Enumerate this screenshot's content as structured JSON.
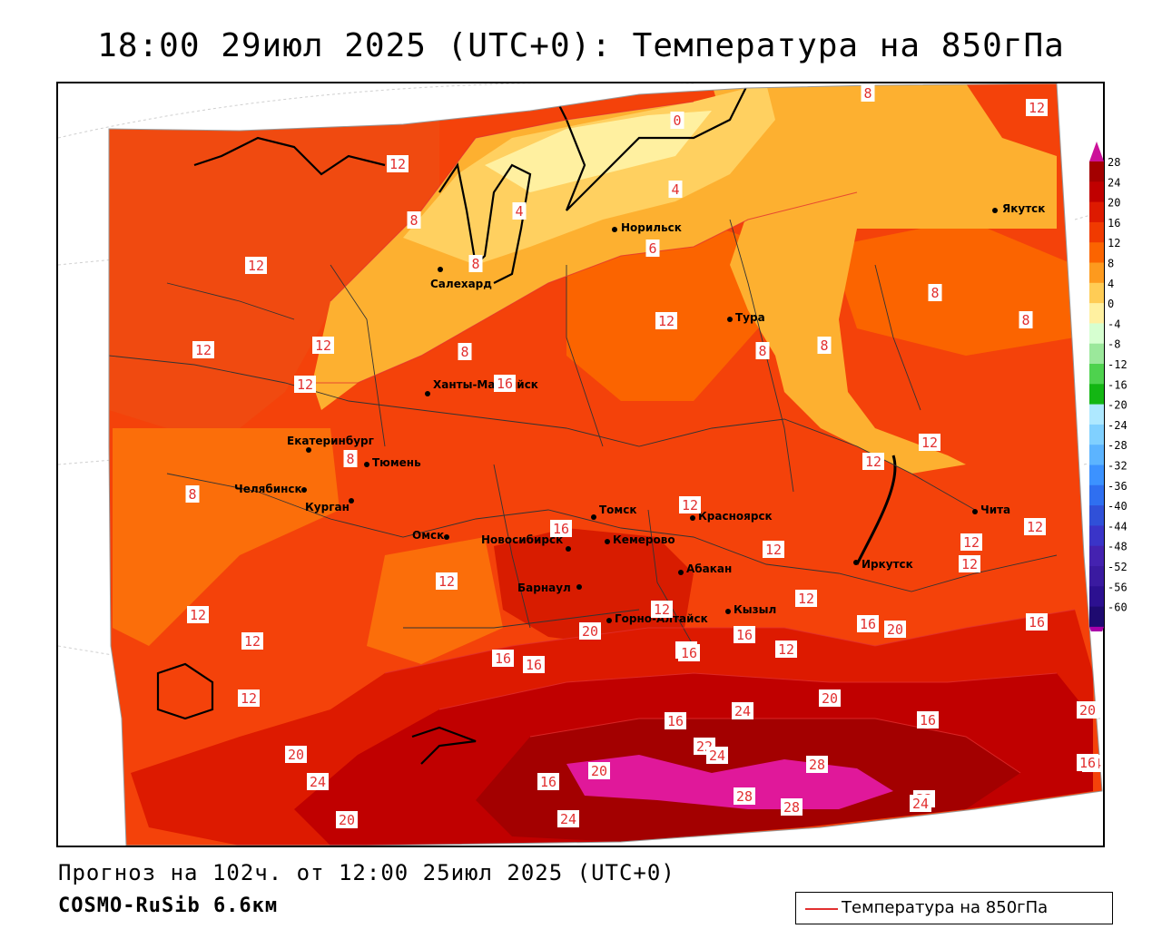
{
  "title": "18:00 29июл 2025 (UTC+0): Температура на 850гПа",
  "forecast_line": "Прогноз на 102ч. от 12:00 25июл 2025 (UTC+0)",
  "model_line": "COSMO-RuSib 6.6км",
  "legend_label": "Температура на 850гПа",
  "contour_color": "#e23030",
  "colorbar": {
    "labels": [
      "28",
      "24",
      "20",
      "16",
      "12",
      "8",
      "4",
      "0",
      "-4",
      "-8",
      "-12",
      "-16",
      "-20",
      "-24",
      "-28",
      "-32",
      "-36",
      "-40",
      "-44",
      "-48",
      "-52",
      "-56",
      "-60"
    ],
    "colors": [
      "#a30000",
      "#c00000",
      "#dd1a00",
      "#f03a00",
      "#fb6400",
      "#fd9a1e",
      "#ffcc55",
      "#fff0a0",
      "#d6ffd0",
      "#9be89b",
      "#4ed24e",
      "#13b613",
      "#aee8ff",
      "#80d0ff",
      "#5cb4ff",
      "#3c92ff",
      "#2f6ff0",
      "#3050d8",
      "#3a34c8",
      "#4422b0",
      "#3a1aa0",
      "#2c1090",
      "#1e0a70"
    ],
    "top_color": "#cc1199",
    "bottom_color": "#aa00aa"
  },
  "cities": [
    {
      "name": "Якутск"
    },
    {
      "name": "Норильск"
    },
    {
      "name": "Салехард"
    },
    {
      "name": "Тура"
    },
    {
      "name": "Ханты-Мансийск"
    },
    {
      "name": "Екатеринбург"
    },
    {
      "name": "Тюмень"
    },
    {
      "name": "Челябинск"
    },
    {
      "name": "Курган"
    },
    {
      "name": "Томск"
    },
    {
      "name": "Красноярск"
    },
    {
      "name": "Чита"
    },
    {
      "name": "Омск"
    },
    {
      "name": "Новосибирск"
    },
    {
      "name": "Кемерово"
    },
    {
      "name": "Иркутск"
    },
    {
      "name": "Абакан"
    },
    {
      "name": "Барнаул"
    },
    {
      "name": "Горно-Алтайск"
    },
    {
      "name": "Кызыл"
    }
  ],
  "contour_labels": [
    "8",
    "12",
    "0",
    "4",
    "4",
    "12",
    "8",
    "8",
    "6",
    "12",
    "12",
    "12",
    "12",
    "8",
    "8",
    "8",
    "8",
    "8",
    "12",
    "12",
    "16",
    "12",
    "8",
    "8",
    "12",
    "12",
    "12",
    "12",
    "12",
    "12",
    "12",
    "12",
    "12",
    "16",
    "12",
    "16",
    "12",
    "16",
    "20",
    "16",
    "16",
    "20",
    "20",
    "16",
    "12",
    "16",
    "20",
    "16",
    "20",
    "24",
    "16",
    "22",
    "24",
    "20",
    "24",
    "16",
    "20",
    "24",
    "28",
    "28",
    "28",
    "32",
    "24",
    "24",
    "20",
    "20",
    "20",
    "24",
    "16"
  ]
}
